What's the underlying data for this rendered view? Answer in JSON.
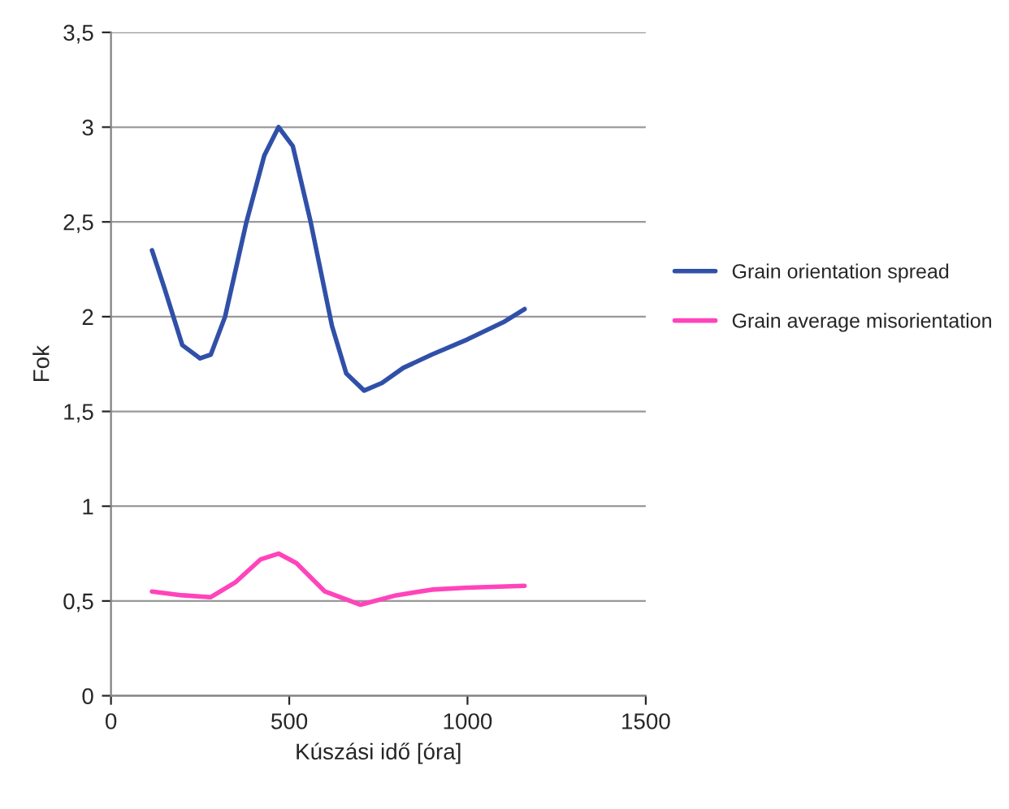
{
  "chart_data": {
    "type": "line",
    "xlabel": "Kúszási idő [óra]",
    "ylabel": "Fok",
    "xlim": [
      0,
      1500
    ],
    "xticks": [
      0,
      500,
      1000,
      1500
    ],
    "ylim": [
      0,
      3.5
    ],
    "yticks": [
      {
        "value": 0,
        "label": "0"
      },
      {
        "value": 0.5,
        "label": "0,5"
      },
      {
        "value": 1,
        "label": "1"
      },
      {
        "value": 1.5,
        "label": "1,5"
      },
      {
        "value": 2,
        "label": "2"
      },
      {
        "value": 2.5,
        "label": "2,5"
      },
      {
        "value": 3,
        "label": "3"
      },
      {
        "value": 3.5,
        "label": "3,5"
      }
    ],
    "grid": "y",
    "legend": "right",
    "line_style": "solid",
    "marker": "none",
    "series": [
      {
        "name": "Grain orientation spread",
        "color": "#3050a8",
        "x": [
          115,
          150,
          200,
          250,
          280,
          320,
          380,
          430,
          470,
          510,
          560,
          620,
          660,
          710,
          760,
          820,
          900,
          1000,
          1100,
          1160
        ],
        "values": [
          2.35,
          2.15,
          1.85,
          1.78,
          1.8,
          2.0,
          2.5,
          2.85,
          3.0,
          2.9,
          2.5,
          1.95,
          1.7,
          1.61,
          1.65,
          1.73,
          1.8,
          1.88,
          1.97,
          2.04
        ]
      },
      {
        "name": "Grain average misorientation",
        "color": "#ff44bb",
        "x": [
          115,
          200,
          280,
          350,
          420,
          470,
          520,
          600,
          700,
          800,
          900,
          1000,
          1160
        ],
        "values": [
          0.55,
          0.53,
          0.52,
          0.6,
          0.72,
          0.75,
          0.7,
          0.55,
          0.48,
          0.53,
          0.56,
          0.57,
          0.58
        ]
      }
    ]
  }
}
